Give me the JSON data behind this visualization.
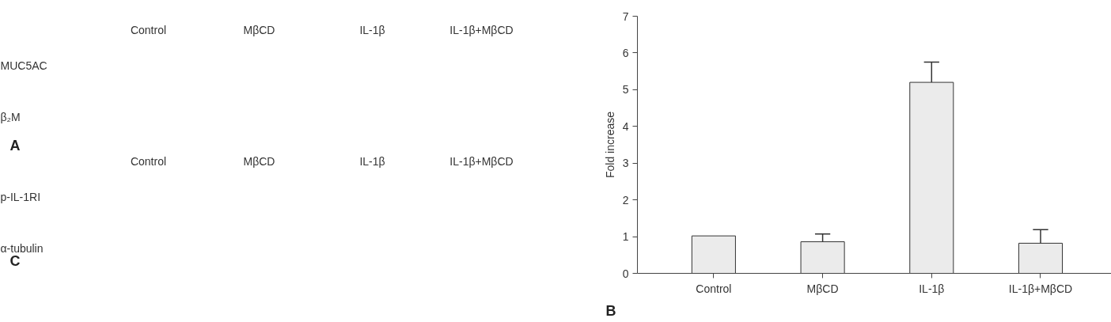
{
  "chart_data": [
    {
      "type": "other",
      "annotations": [
        "Control",
        "MβCD",
        "IL-1β",
        "IL-1β+MβCD",
        "MUC5AC",
        "β₂M",
        "A",
        "Control",
        "MβCD",
        "IL-1β",
        "IL-1β+MβCD",
        "p-IL-1RI",
        "α-tubulin",
        "C"
      ]
    },
    {
      "type": "bar",
      "ylabel": "Fold increase",
      "annotations": [
        "B"
      ],
      "categories": [
        "Control",
        "MβCD",
        "IL-1β",
        "IL-1β+MβCD"
      ],
      "values": [
        1.02,
        0.86,
        5.2,
        0.82
      ],
      "errors": [
        null,
        [
          0.86,
          1.07
        ],
        [
          5.2,
          5.75
        ],
        [
          0.82,
          1.19
        ]
      ],
      "color": "#ebebeb",
      "ylim": [
        0,
        7
      ],
      "yticks": [
        0,
        1,
        2,
        3,
        4,
        5,
        6,
        7
      ],
      "grid": false
    }
  ]
}
